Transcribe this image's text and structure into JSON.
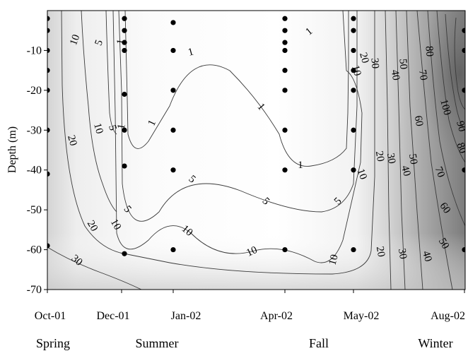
{
  "chart_data": {
    "type": "contour",
    "title": "",
    "xlabel": "",
    "ylabel": "Depth (m)",
    "ylim": [
      -70,
      0
    ],
    "y_ticks": [
      -10,
      -20,
      -30,
      -40,
      -50,
      -60,
      -70
    ],
    "x_tick_labels": [
      "Oct-01",
      "Dec-01",
      "Jan-02",
      "Apr-02",
      "May-02",
      "Aug-02"
    ],
    "season_labels": [
      "Spring",
      "Summer",
      "Fall",
      "Winter"
    ],
    "contour_levels": [
      1,
      5,
      10,
      20,
      30,
      40,
      50,
      60,
      70,
      80,
      90,
      100
    ],
    "contour_labels": [
      {
        "text": "10"
      },
      {
        "text": "5"
      },
      {
        "text": "1"
      },
      {
        "text": "1"
      },
      {
        "text": "1"
      },
      {
        "text": "1"
      },
      {
        "text": "1"
      },
      {
        "text": "20"
      },
      {
        "text": "10"
      },
      {
        "text": "5"
      },
      {
        "text": "1"
      },
      {
        "text": "5"
      },
      {
        "text": "5"
      },
      {
        "text": "5"
      },
      {
        "text": "1"
      },
      {
        "text": "10"
      },
      {
        "text": "20"
      },
      {
        "text": "10"
      },
      {
        "text": "30"
      },
      {
        "text": "10"
      },
      {
        "text": "10"
      },
      {
        "text": "10"
      },
      {
        "text": "5"
      },
      {
        "text": "10"
      },
      {
        "text": "20"
      },
      {
        "text": "30"
      },
      {
        "text": "50"
      },
      {
        "text": "80"
      },
      {
        "text": "40"
      },
      {
        "text": "70"
      },
      {
        "text": "60"
      },
      {
        "text": "100"
      },
      {
        "text": "90"
      },
      {
        "text": "80"
      },
      {
        "text": "20"
      },
      {
        "text": "30"
      },
      {
        "text": "50"
      },
      {
        "text": "40"
      },
      {
        "text": "70"
      },
      {
        "text": "60"
      },
      {
        "text": "20"
      },
      {
        "text": "30"
      },
      {
        "text": "40"
      },
      {
        "text": "50"
      }
    ],
    "grid": false,
    "colormap": "white-to-dark-gray"
  }
}
